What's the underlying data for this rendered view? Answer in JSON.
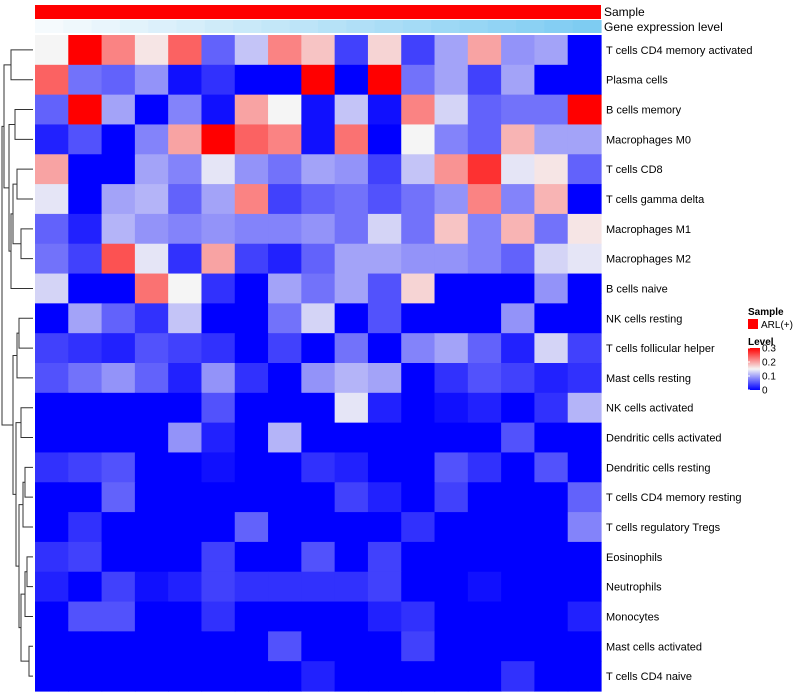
{
  "chart_data": {
    "type": "heatmap",
    "annotations": {
      "sample_label": "Sample",
      "expression_label": "Gene expression level",
      "sample_color": "#ff0000",
      "expression_values": [
        0.0,
        0.05,
        0.1,
        0.16,
        0.21,
        0.26,
        0.32,
        0.37,
        0.42,
        0.47,
        0.53,
        0.58,
        0.63,
        0.68,
        0.74,
        0.79,
        0.84,
        0.89,
        0.95,
        1.0
      ]
    },
    "rows": [
      "T cells CD4 memory activated",
      "Plasma cells",
      "B cells memory",
      "Macrophages M0",
      "T cells CD8",
      "T cells gamma delta",
      "Macrophages M1",
      "Macrophages M2",
      "B cells naive",
      "NK cells resting",
      "T cells follicular helper",
      "Mast cells resting",
      "NK cells activated",
      "Dendritic cells activated",
      "Dendritic cells resting",
      "T cells CD4 memory resting",
      "T cells regulatory  Tregs",
      "Eosinophils",
      "Neutrophils",
      "Monocytes",
      "Mast cells activated",
      "T cells CD4 naive"
    ],
    "values": [
      [
        0.15,
        0.3,
        0.22,
        0.16,
        0.24,
        0.06,
        0.12,
        0.22,
        0.18,
        0.04,
        0.17,
        0.04,
        0.1,
        0.2,
        0.09,
        0.1,
        0.0
      ],
      [
        0.24,
        0.07,
        0.06,
        0.09,
        0.01,
        0.03,
        0.0,
        0.0,
        0.3,
        0.0,
        0.3,
        0.07,
        0.1,
        0.04,
        0.1,
        0.0,
        0.0
      ],
      [
        0.06,
        0.3,
        0.1,
        0.0,
        0.08,
        0.01,
        0.2,
        0.15,
        0.01,
        0.12,
        0.01,
        0.22,
        0.13,
        0.06,
        0.07,
        0.07,
        0.3
      ],
      [
        0.02,
        0.05,
        0.0,
        0.08,
        0.2,
        0.3,
        0.24,
        0.22,
        0.01,
        0.23,
        0.0,
        0.15,
        0.08,
        0.06,
        0.19,
        0.1,
        0.1
      ],
      [
        0.2,
        0.0,
        0.0,
        0.1,
        0.08,
        0.14,
        0.09,
        0.07,
        0.1,
        0.09,
        0.04,
        0.12,
        0.21,
        0.27,
        0.14,
        0.16,
        0.06
      ],
      [
        0.14,
        0.0,
        0.1,
        0.11,
        0.06,
        0.1,
        0.22,
        0.04,
        0.06,
        0.07,
        0.05,
        0.07,
        0.09,
        0.22,
        0.08,
        0.19,
        0.0
      ],
      [
        0.06,
        0.02,
        0.11,
        0.09,
        0.08,
        0.09,
        0.08,
        0.08,
        0.09,
        0.07,
        0.13,
        0.07,
        0.18,
        0.08,
        0.19,
        0.07,
        0.16
      ],
      [
        0.07,
        0.04,
        0.25,
        0.14,
        0.03,
        0.2,
        0.04,
        0.02,
        0.06,
        0.1,
        0.1,
        0.09,
        0.09,
        0.08,
        0.06,
        0.13,
        0.14
      ],
      [
        0.13,
        0.0,
        0.0,
        0.23,
        0.15,
        0.03,
        0.0,
        0.1,
        0.07,
        0.1,
        0.05,
        0.17,
        0.0,
        0.0,
        0.0,
        0.09,
        0.0
      ],
      [
        0.0,
        0.1,
        0.06,
        0.03,
        0.12,
        0.0,
        0.0,
        0.07,
        0.13,
        0.0,
        0.05,
        0.0,
        0.0,
        0.0,
        0.09,
        0.0,
        0.0
      ],
      [
        0.04,
        0.03,
        0.02,
        0.05,
        0.04,
        0.03,
        0.0,
        0.04,
        0.0,
        0.07,
        0.0,
        0.08,
        0.1,
        0.06,
        0.02,
        0.13,
        0.04
      ],
      [
        0.05,
        0.07,
        0.09,
        0.06,
        0.02,
        0.09,
        0.03,
        0.0,
        0.09,
        0.11,
        0.1,
        0.0,
        0.03,
        0.05,
        0.04,
        0.02,
        0.03
      ],
      [
        0.0,
        0.0,
        0.0,
        0.0,
        0.0,
        0.05,
        0.0,
        0.0,
        0.0,
        0.14,
        0.02,
        0.0,
        0.01,
        0.02,
        0.0,
        0.03,
        0.11
      ],
      [
        0.0,
        0.0,
        0.0,
        0.0,
        0.09,
        0.02,
        0.0,
        0.11,
        0.0,
        0.0,
        0.0,
        0.0,
        0.0,
        0.0,
        0.05,
        0.0,
        0.0
      ],
      [
        0.03,
        0.04,
        0.05,
        0.0,
        0.0,
        0.01,
        0.0,
        0.0,
        0.03,
        0.02,
        0.0,
        0.0,
        0.05,
        0.03,
        0.0,
        0.05,
        0.0
      ],
      [
        0.0,
        0.0,
        0.06,
        0.0,
        0.0,
        0.0,
        0.0,
        0.0,
        0.0,
        0.04,
        0.02,
        0.0,
        0.04,
        0.0,
        0.0,
        0.0,
        0.06
      ],
      [
        0.0,
        0.03,
        0.0,
        0.0,
        0.0,
        0.0,
        0.06,
        0.0,
        0.0,
        0.0,
        0.0,
        0.03,
        0.0,
        0.0,
        0.0,
        0.0,
        0.08
      ],
      [
        0.03,
        0.04,
        0.0,
        0.0,
        0.0,
        0.04,
        0.0,
        0.0,
        0.05,
        0.0,
        0.04,
        0.0,
        0.0,
        0.0,
        0.0,
        0.0,
        0.0
      ],
      [
        0.02,
        0.0,
        0.04,
        0.01,
        0.02,
        0.04,
        0.03,
        0.03,
        0.03,
        0.03,
        0.04,
        0.0,
        0.0,
        0.01,
        0.0,
        0.0,
        0.0
      ],
      [
        0.0,
        0.05,
        0.05,
        0.0,
        0.0,
        0.03,
        0.0,
        0.0,
        0.0,
        0.0,
        0.02,
        0.03,
        0.0,
        0.0,
        0.0,
        0.0,
        0.02
      ],
      [
        0.0,
        0.0,
        0.0,
        0.0,
        0.0,
        0.0,
        0.0,
        0.05,
        0.0,
        0.0,
        0.0,
        0.04,
        0.0,
        0.0,
        0.0,
        0.0,
        0.0
      ],
      [
        0.0,
        0.0,
        0.0,
        0.0,
        0.0,
        0.0,
        0.0,
        0.0,
        0.02,
        0.0,
        0.0,
        0.0,
        0.0,
        0.0,
        0.03,
        0.0,
        0.0
      ]
    ],
    "color_scale": {
      "min": 0,
      "mid": 0.15,
      "max": 0.3,
      "low_color": "#0000ff",
      "mid_color": "#f5f5f5",
      "high_color": "#ff0000"
    },
    "legend": {
      "sample_title": "Sample",
      "sample_entry": "ARL(+)",
      "level_title": "Level",
      "level_ticks": [
        {
          "value": 0.3,
          "label": "0.3"
        },
        {
          "value": 0.2,
          "label": "0.2"
        },
        {
          "value": 0.1,
          "label": "0.1"
        },
        {
          "value": 0,
          "label": "0"
        }
      ]
    }
  }
}
